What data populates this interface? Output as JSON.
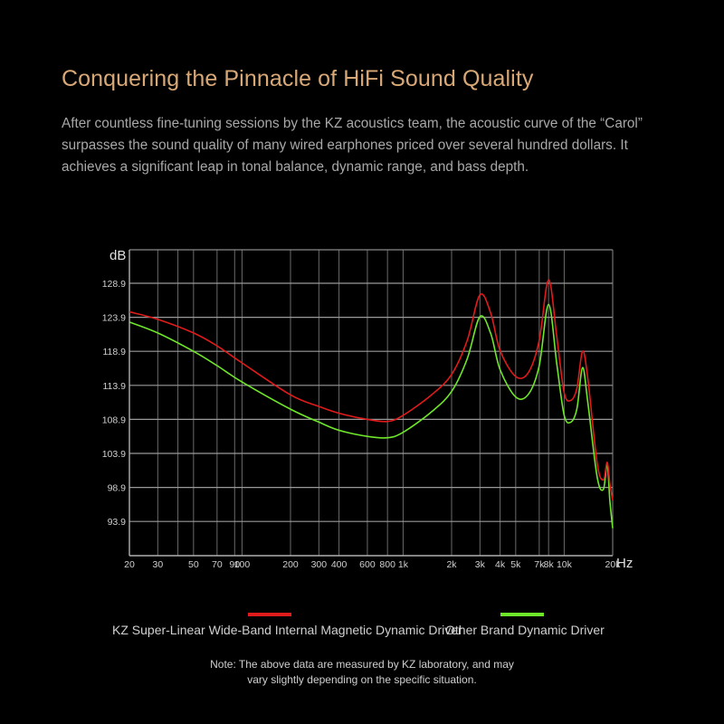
{
  "header": {
    "title": "Conquering the Pinnacle of HiFi Sound Quality",
    "description_lines": [
      "After countless fine-tuning sessions by the KZ acoustics team, the acoustic curve of the “Carol”",
      "surpasses the sound quality of many wired earphones priced over several hundred dollars. It",
      "achieves a significant leap in tonal balance, dynamic range, and bass depth."
    ]
  },
  "legend": {
    "items": [
      {
        "label": "KZ Super-Linear Wide-Band Internal Magnetic Dynamic Driver",
        "color": "#e01b1b"
      },
      {
        "label": "Other Brand Dynamic Driver",
        "color": "#6ee62a"
      }
    ]
  },
  "note": {
    "lines": [
      "Note: The above data are measured by KZ laboratory, and may",
      "vary slightly depending on the specific situation."
    ]
  },
  "chart_data": {
    "type": "line",
    "title": "",
    "xlabel": "Hz",
    "ylabel": "dB",
    "xscale": "log",
    "xlim": [
      20,
      20000
    ],
    "ylim": [
      88.9,
      132.9
    ],
    "grid": true,
    "legend_position": "bottom",
    "x_tick_labels": [
      "20",
      "30",
      "50",
      "70",
      "90",
      "100",
      "200",
      "300",
      "400",
      "600",
      "800",
      "1k",
      "2k",
      "3k",
      "4k",
      "5k",
      "7k",
      "8k",
      "10k",
      "20k"
    ],
    "x_gridlines": [
      20,
      30,
      40,
      50,
      70,
      90,
      100,
      200,
      300,
      400,
      600,
      800,
      1000,
      2000,
      3000,
      4000,
      5000,
      7000,
      8000,
      10000,
      20000
    ],
    "y_tick_labels": [
      "128.9",
      "123.9",
      "118.9",
      "113.9",
      "108.9",
      "103.9",
      "98.9",
      "93.9"
    ],
    "y_ticks": [
      128.9,
      123.9,
      118.9,
      113.9,
      108.9,
      103.9,
      98.9,
      93.9
    ],
    "x": [
      20,
      30,
      50,
      70,
      100,
      200,
      300,
      400,
      600,
      800,
      1000,
      1500,
      2000,
      2500,
      3000,
      3500,
      4000,
      5000,
      6000,
      7000,
      8000,
      9000,
      10000,
      11000,
      12000,
      13000,
      14000,
      16000,
      17500,
      18500,
      19200,
      20000
    ],
    "series": [
      {
        "name": "KZ Super-Linear Wide-Band Internal Magnetic Dynamic Driver",
        "color": "#e01b1b",
        "values": [
          124.7,
          123.6,
          121.6,
          119.7,
          117.2,
          112.5,
          110.8,
          109.8,
          108.9,
          108.6,
          109.5,
          112.5,
          115.5,
          120.5,
          127.2,
          124.5,
          119.0,
          115.2,
          115.8,
          120.5,
          129.4,
          121.0,
          112.8,
          111.7,
          113.5,
          118.9,
          115.0,
          102.5,
          100.0,
          102.6,
          99.5,
          97.0
        ]
      },
      {
        "name": "Other Brand Dynamic Driver",
        "color": "#6ee62a",
        "values": [
          123.2,
          121.6,
          118.9,
          116.8,
          114.4,
          110.4,
          108.5,
          107.3,
          106.4,
          106.2,
          107.0,
          110.0,
          113.0,
          117.8,
          124.0,
          121.5,
          116.2,
          112.2,
          112.6,
          116.8,
          125.8,
          117.0,
          109.5,
          108.5,
          110.5,
          116.5,
          111.5,
          100.5,
          98.6,
          102.3,
          97.0,
          92.9
        ]
      }
    ]
  }
}
